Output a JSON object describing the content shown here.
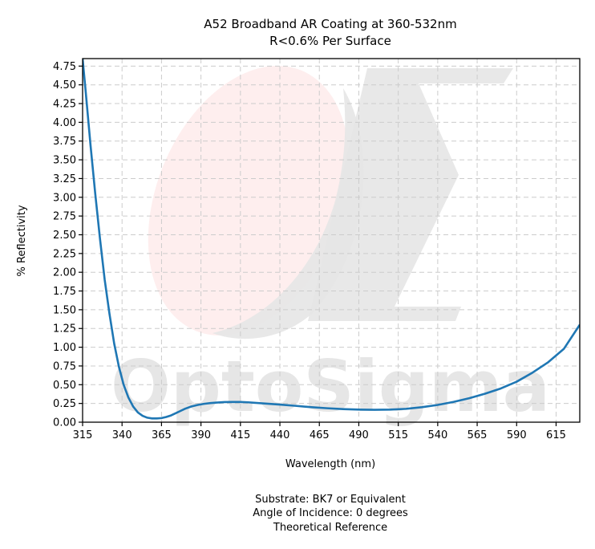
{
  "chart_data": {
    "type": "line",
    "title": "A52 Broadband AR Coating at 360-532nm",
    "subtitle": "R<0.6% Per Surface",
    "xlabel": "Wavelength (nm)",
    "ylabel": "% Reflectivity",
    "xlim": [
      315,
      630
    ],
    "ylim": [
      0,
      4.85
    ],
    "xticks": [
      315,
      340,
      365,
      390,
      415,
      440,
      465,
      490,
      515,
      540,
      565,
      590,
      615
    ],
    "yticks": [
      0.0,
      0.25,
      0.5,
      0.75,
      1.0,
      1.25,
      1.5,
      1.75,
      2.0,
      2.25,
      2.5,
      2.75,
      3.0,
      3.25,
      3.5,
      3.75,
      4.0,
      4.25,
      4.5,
      4.75
    ],
    "grid": true,
    "series": [
      {
        "color": "#1f77b4",
        "x": [
          315,
          317,
          320,
          323,
          326,
          329,
          332,
          335,
          338,
          341,
          344,
          347,
          350,
          353,
          356,
          359,
          362,
          365,
          368,
          371,
          374,
          377,
          380,
          384,
          388,
          392,
          396,
          400,
          405,
          410,
          415,
          420,
          430,
          440,
          450,
          460,
          470,
          480,
          490,
          500,
          510,
          520,
          530,
          540,
          550,
          560,
          570,
          580,
          590,
          600,
          610,
          620,
          630
        ],
        "y": [
          4.85,
          4.4,
          3.7,
          3.05,
          2.45,
          1.9,
          1.45,
          1.05,
          0.74,
          0.5,
          0.33,
          0.21,
          0.13,
          0.085,
          0.06,
          0.05,
          0.05,
          0.055,
          0.07,
          0.09,
          0.12,
          0.15,
          0.18,
          0.21,
          0.23,
          0.245,
          0.255,
          0.262,
          0.268,
          0.27,
          0.27,
          0.265,
          0.25,
          0.235,
          0.218,
          0.2,
          0.186,
          0.175,
          0.168,
          0.165,
          0.168,
          0.178,
          0.2,
          0.23,
          0.27,
          0.32,
          0.38,
          0.45,
          0.54,
          0.66,
          0.8,
          0.98,
          1.3
        ]
      }
    ]
  },
  "watermark": {
    "text": "OptoSigma",
    "ellipse_color": "#fde8e8",
    "shape_color": "#e6e6e6"
  },
  "footer": {
    "line1": "Substrate: BK7 or Equivalent",
    "line2": "Angle of Incidence: 0 degrees",
    "line3": "Theoretical Reference"
  }
}
